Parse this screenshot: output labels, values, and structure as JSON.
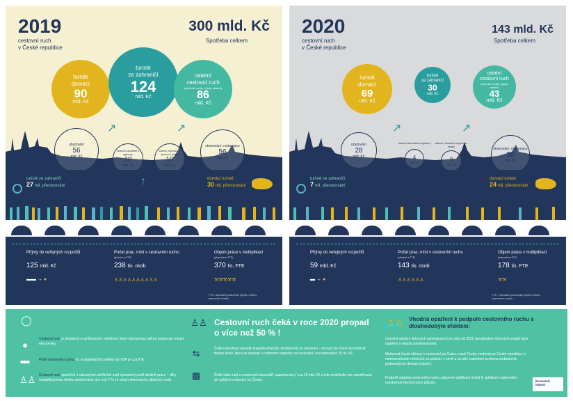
{
  "panels": {
    "y2019": {
      "year": "2019",
      "subtitle_line1": "cestovní ruch",
      "subtitle_line2": "v České republice",
      "total": "300 mld. Kč",
      "total_label": "Spotřeba celkem",
      "domestic": {
        "label1": "turisté",
        "label2": "domácí",
        "value": "90",
        "unit": "mld. Kč"
      },
      "foreign": {
        "label1": "turisté",
        "label2": "ze zahraničí",
        "value": "124",
        "unit": "mld. Kč"
      },
      "other": {
        "label1": "ostatní",
        "label2": "cestovní ruch",
        "note": "(služební cesty, výlety, ostatní)",
        "value": "86",
        "unit": "mld. Kč"
      },
      "accommodation": {
        "label": "ubytování",
        "value": "56",
        "unit": "mld. Kč"
      },
      "agencies": {
        "label": "cestovní kanceláře a agentury",
        "value": "10",
        "unit": "mld. Kč"
      },
      "culture": {
        "label": "kulturní, rekreační a sportovní služby",
        "value": "10",
        "unit": "mld. Kč"
      },
      "food": {
        "label": "stravování, restaurace",
        "value": "56",
        "unit": "mld. Kč"
      },
      "foreign_tourists_label": "turisté ze zahraničí",
      "foreign_tourists_value": "27",
      "foreign_tourists_unit": "mil. přenocování",
      "domestic_tourists_label": "domácí turisté",
      "domestic_tourists_value": "30",
      "domestic_tourists_unit": "mil. přenocování",
      "revenue_label": "Příjmy do veřejných rozpočtů",
      "revenue_value": "125",
      "revenue_unit": "mld. Kč",
      "jobs_label": "Počet prac. míst v cestovním ruchu",
      "jobs_note": "(přímých a FTE)",
      "jobs_value": "238",
      "jobs_unit": "tis. osob",
      "work_label": "Objem práce v multiplikaci",
      "work_note": "(přepočteno FTE)",
      "work_value": "370",
      "work_unit": "tis. FTE",
      "fte_note": "FTE = ekvivalent pracovních příjmů z plného pracovního úvazku"
    },
    "y2020": {
      "year": "2020",
      "subtitle_line1": "cestovní ruch",
      "subtitle_line2": "v České republice",
      "total": "143 mld. Kč",
      "total_label": "Spotřeba celkem",
      "domestic": {
        "label1": "turisté",
        "label2": "domácí",
        "value": "69",
        "unit": "mld. Kč"
      },
      "foreign": {
        "label1": "turisté",
        "label2": "ze zahraničí",
        "value": "30",
        "unit": "mld. Kč"
      },
      "other": {
        "label1": "ostatní",
        "label2": "cestovní ruch",
        "note": "(služební cesty, výlety, ostatní)",
        "value": "43",
        "unit": "mld. Kč"
      },
      "accommodation": {
        "label": "ubytování",
        "value": "28",
        "unit": "mld. Kč"
      },
      "agencies": {
        "label": "cestovní kanceláře a agentury",
        "value": "4",
        "unit": "mld. Kč"
      },
      "culture": {
        "label": "kulturní, rekreační a sportovní služby",
        "value": "8",
        "unit": "mld. Kč"
      },
      "food": {
        "label": "stravování, restaurace",
        "value": "30",
        "unit": "mld. Kč"
      },
      "foreign_tourists_label": "turisté ze zahraničí",
      "foreign_tourists_value": "7",
      "foreign_tourists_unit": "mil. přenocování",
      "domestic_tourists_label": "domácí turisté",
      "domestic_tourists_value": "24",
      "domestic_tourists_unit": "mil. přenocování",
      "revenue_label": "Příjmy do veřejných rozpočtů",
      "revenue_value": "59",
      "revenue_unit": "mld. Kč",
      "jobs_label": "Počet prac. míst v cestovním ruchu",
      "jobs_note": "(přímých a FTE)",
      "jobs_value": "143",
      "jobs_unit": "tis. osob",
      "work_label": "Objem práce v multiplikaci",
      "work_note": "(přepočteno FTE)",
      "work_value": "178",
      "work_unit": "tis. FTE",
      "fte_note": "FTE = ekvivalent pracovních příjmů z plného pracovního úvazku"
    }
  },
  "bottom": {
    "left": [
      {
        "a": "Cestovní ruch",
        "b": " je iniciačním a průřezovým odvětvím, které významnou měrou podporuje místní ekonomiky."
      },
      {
        "a": "Podíl cestovního ruchu",
        "b": " vč. multiplikačních efektů na HDP je cca 8 %."
      },
      {
        "a": "Cestovní ruch",
        "b": " společně s návaznými odvětvími mají významný podíl ideálně práce – díky multiplikačnímu efektu zaměstnává více než 7 % ze všech ekonomicky aktivních osob."
      }
    ],
    "headline": "Cestovní ruch čeká v roce 2020 propad o více než 50 % !",
    "mid": [
      "Čeští nemohou nahradit výpadek příjezdů návštěvníků ze zahraničí – domácí by mohli rozmístit až třetinu deviz, která se neutratí v rodinném rozpočtu na cestování, cca minimálně 25 tis. Kč.",
      "Čeští však mají u cestovních kanceláří „zaparkovány“ cca 10 mld. Kč a tyto prostředky lze nasměrovat do vyšších cestování po Česku."
    ],
    "right_head": "Vhodná opatření k podpoře cestovního ruchu s dlouhodobým efektem:",
    "right": [
      "Umožnit udržení klíčových zaměstnanců po celý rok 2020 (prodloužení účinných podpůrných opatření v oblasti zaměstnanosti).",
      "Motivovat české občany k cestování po Česku, nauč Čechy cestovat po České republice i v mimosezónních měsících na podzim, v zimě a na jaře (zavedení systému podpůrných podporujících domácí pobyty).",
      "Podpořit subjekty cestovního ruchu zařazené splátkami úvěrů či splátkami nájemného (poskytnutí bezúročných půjček)."
    ],
    "logo_line1": "Economic",
    "logo_line2": "Impact"
  }
}
